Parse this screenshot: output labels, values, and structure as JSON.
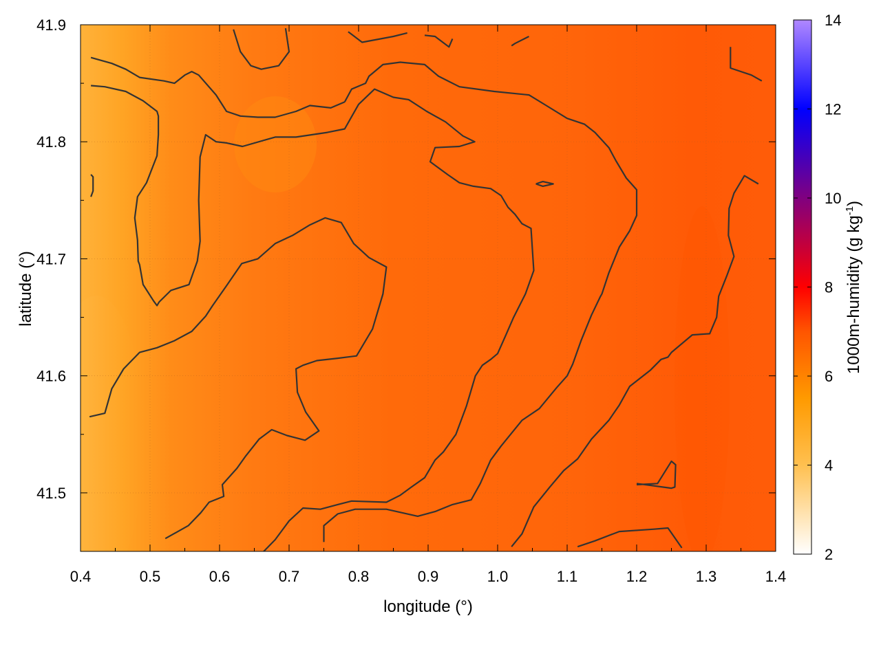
{
  "chart_data": {
    "type": "heatmap",
    "xlabel": "longitude (°)",
    "ylabel": "latitude (°)",
    "colorbar_label": "1000m-humidity (g kg-1)",
    "colorbar_label_main": "1000m-humidity (g kg",
    "colorbar_label_sup": "-1",
    "colorbar_label_close": ")",
    "xlim": [
      0.4,
      1.4
    ],
    "ylim": [
      41.45,
      41.9
    ],
    "clim": [
      2,
      14
    ],
    "x_ticks": [
      0.4,
      0.5,
      0.6,
      0.7,
      0.8,
      0.9,
      1.0,
      1.1,
      1.2,
      1.3,
      1.4
    ],
    "x_tick_labels": [
      "0.4",
      "0.5",
      "0.6",
      "0.7",
      "0.8",
      "0.9",
      "1.0",
      "1.1",
      "1.2",
      "1.3",
      "1.4"
    ],
    "y_ticks": [
      41.5,
      41.6,
      41.7,
      41.8,
      41.9
    ],
    "y_tick_labels": [
      "41.5",
      "41.6",
      "41.7",
      "41.8",
      "41.9"
    ],
    "c_ticks": [
      2,
      4,
      6,
      8,
      10,
      12,
      14
    ],
    "c_tick_labels": [
      "2",
      "4",
      "6",
      "8",
      "10",
      "12",
      "14"
    ],
    "colormap": [
      {
        "value": 2,
        "color": "#ffffff"
      },
      {
        "value": 4,
        "color": "#ffc050"
      },
      {
        "value": 5.5,
        "color": "#ff9a00"
      },
      {
        "value": 7,
        "color": "#ff5500"
      },
      {
        "value": 8,
        "color": "#ff0000"
      },
      {
        "value": 10,
        "color": "#800080"
      },
      {
        "value": 12,
        "color": "#0000ff"
      },
      {
        "value": 14,
        "color": "#b088ff"
      }
    ],
    "grid": true,
    "field_description": "humidity between roughly 5 and 7 g/kg over the map, lowest (yellow-orange) along the western edge near 0.4-0.5 lon, highest (dark orange-red) near 1.3 lon",
    "field_samples": [
      {
        "lon": 0.42,
        "lat": 41.55,
        "value": 4.6
      },
      {
        "lon": 0.45,
        "lat": 41.65,
        "value": 5.0
      },
      {
        "lon": 0.5,
        "lat": 41.75,
        "value": 5.6
      },
      {
        "lon": 0.65,
        "lat": 41.8,
        "value": 5.4
      },
      {
        "lon": 0.8,
        "lat": 41.7,
        "value": 6.1
      },
      {
        "lon": 0.9,
        "lat": 41.6,
        "value": 6.2
      },
      {
        "lon": 1.0,
        "lat": 41.8,
        "value": 6.3
      },
      {
        "lon": 1.15,
        "lat": 41.7,
        "value": 6.6
      },
      {
        "lon": 1.3,
        "lat": 41.6,
        "value": 7.0
      },
      {
        "lon": 1.35,
        "lat": 41.85,
        "value": 6.9
      }
    ],
    "contours": [
      [
        [
          0.415,
          41.872
        ],
        [
          0.445,
          41.867
        ],
        [
          0.465,
          41.862
        ],
        [
          0.485,
          41.855
        ],
        [
          0.52,
          41.852
        ],
        [
          0.535,
          41.85
        ],
        [
          0.55,
          41.857
        ],
        [
          0.56,
          41.86
        ],
        [
          0.57,
          41.857
        ],
        [
          0.595,
          41.84
        ],
        [
          0.61,
          41.826
        ],
        [
          0.63,
          41.822
        ],
        [
          0.655,
          41.821
        ],
        [
          0.68,
          41.821
        ],
        [
          0.71,
          41.826
        ],
        [
          0.73,
          41.831
        ],
        [
          0.76,
          41.829
        ],
        [
          0.78,
          41.834
        ]
      ],
      [
        [
          0.415,
          41.848
        ],
        [
          0.435,
          41.847
        ],
        [
          0.465,
          41.843
        ],
        [
          0.49,
          41.835
        ],
        [
          0.51,
          41.826
        ],
        [
          0.512,
          41.822
        ],
        [
          0.512,
          41.806
        ],
        [
          0.51,
          41.788
        ],
        [
          0.495,
          41.765
        ],
        [
          0.482,
          41.753
        ],
        [
          0.478,
          41.735
        ],
        [
          0.482,
          41.716
        ],
        [
          0.483,
          41.698
        ],
        [
          0.485,
          41.695
        ],
        [
          0.49,
          41.678
        ],
        [
          0.505,
          41.664
        ],
        [
          0.51,
          41.66
        ],
        [
          0.513,
          41.663
        ],
        [
          0.53,
          41.673
        ],
        [
          0.556,
          41.678
        ],
        [
          0.568,
          41.698
        ],
        [
          0.572,
          41.715
        ],
        [
          0.57,
          41.75
        ],
        [
          0.572,
          41.787
        ],
        [
          0.58,
          41.806
        ],
        [
          0.595,
          41.8
        ],
        [
          0.61,
          41.799
        ],
        [
          0.633,
          41.796
        ],
        [
          0.68,
          41.804
        ],
        [
          0.71,
          41.804
        ],
        [
          0.755,
          41.808
        ],
        [
          0.78,
          41.811
        ],
        [
          0.8,
          41.832
        ],
        [
          0.823,
          41.845
        ],
        [
          0.85,
          41.838
        ],
        [
          0.872,
          41.836
        ],
        [
          0.898,
          41.826
        ],
        [
          0.925,
          41.817
        ],
        [
          0.95,
          41.805
        ],
        [
          0.967,
          41.8
        ],
        [
          0.945,
          41.796
        ],
        [
          0.91,
          41.795
        ],
        [
          0.903,
          41.783
        ],
        [
          0.928,
          41.772
        ],
        [
          0.945,
          41.765
        ],
        [
          0.965,
          41.762
        ],
        [
          0.99,
          41.76
        ],
        [
          1.005,
          41.754
        ],
        [
          1.015,
          41.744
        ],
        [
          1.025,
          41.738
        ],
        [
          1.035,
          41.73
        ],
        [
          1.048,
          41.726
        ],
        [
          1.052,
          41.69
        ],
        [
          1.04,
          41.67
        ],
        [
          1.023,
          41.65
        ],
        [
          1.012,
          41.635
        ],
        [
          1.0,
          41.619
        ],
        [
          0.99,
          41.614
        ],
        [
          0.978,
          41.609
        ],
        [
          0.968,
          41.6
        ],
        [
          0.955,
          41.574
        ],
        [
          0.94,
          41.55
        ],
        [
          0.922,
          41.535
        ],
        [
          0.91,
          41.528
        ],
        [
          0.895,
          41.513
        ],
        [
          0.876,
          41.505
        ],
        [
          0.86,
          41.498
        ],
        [
          0.84,
          41.492
        ],
        [
          0.79,
          41.493
        ],
        [
          0.77,
          41.49
        ],
        [
          0.745,
          41.486
        ],
        [
          0.72,
          41.487
        ],
        [
          0.7,
          41.476
        ],
        [
          0.68,
          41.46
        ],
        [
          0.657,
          41.446
        ]
      ],
      [
        [
          0.413,
          41.565
        ],
        [
          0.435,
          41.568
        ],
        [
          0.445,
          41.589
        ],
        [
          0.462,
          41.606
        ],
        [
          0.485,
          41.62
        ],
        [
          0.51,
          41.624
        ],
        [
          0.535,
          41.63
        ],
        [
          0.56,
          41.638
        ],
        [
          0.58,
          41.651
        ],
        [
          0.59,
          41.66
        ],
        [
          0.61,
          41.677
        ],
        [
          0.632,
          41.696
        ],
        [
          0.655,
          41.7
        ],
        [
          0.68,
          41.713
        ],
        [
          0.705,
          41.72
        ],
        [
          0.73,
          41.729
        ],
        [
          0.752,
          41.735
        ],
        [
          0.775,
          41.731
        ],
        [
          0.793,
          41.713
        ],
        [
          0.815,
          41.701
        ],
        [
          0.84,
          41.693
        ],
        [
          0.835,
          41.67
        ],
        [
          0.82,
          41.64
        ],
        [
          0.797,
          41.617
        ],
        [
          0.77,
          41.615
        ],
        [
          0.74,
          41.613
        ],
        [
          0.72,
          41.609
        ],
        [
          0.71,
          41.606
        ],
        [
          0.712,
          41.586
        ],
        [
          0.724,
          41.569
        ],
        [
          0.743,
          41.553
        ],
        [
          0.723,
          41.545
        ],
        [
          0.697,
          41.549
        ],
        [
          0.675,
          41.554
        ],
        [
          0.657,
          41.546
        ],
        [
          0.637,
          41.531
        ],
        [
          0.625,
          41.521
        ],
        [
          0.604,
          41.507
        ],
        [
          0.606,
          41.497
        ],
        [
          0.585,
          41.492
        ],
        [
          0.573,
          41.483
        ],
        [
          0.555,
          41.472
        ],
        [
          0.522,
          41.461
        ]
      ],
      [
        [
          0.75,
          41.458
        ],
        [
          0.75,
          41.472
        ],
        [
          0.77,
          41.482
        ],
        [
          0.795,
          41.486
        ],
        [
          0.84,
          41.486
        ],
        [
          0.885,
          41.48
        ],
        [
          0.91,
          41.484
        ],
        [
          0.935,
          41.49
        ],
        [
          0.962,
          41.494
        ],
        [
          0.975,
          41.508
        ],
        [
          0.99,
          41.528
        ],
        [
          1.005,
          41.54
        ],
        [
          1.035,
          41.562
        ],
        [
          1.06,
          41.572
        ],
        [
          1.085,
          41.59
        ],
        [
          1.1,
          41.6
        ],
        [
          1.108,
          41.61
        ],
        [
          1.12,
          41.63
        ],
        [
          1.135,
          41.652
        ],
        [
          1.148,
          41.668
        ],
        [
          1.15,
          41.67
        ],
        [
          1.16,
          41.688
        ],
        [
          1.175,
          41.71
        ],
        [
          1.19,
          41.724
        ],
        [
          1.2,
          41.737
        ],
        [
          1.2,
          41.759
        ],
        [
          1.185,
          41.769
        ],
        [
          1.17,
          41.784
        ],
        [
          1.16,
          41.795
        ],
        [
          1.14,
          41.808
        ],
        [
          1.125,
          41.815
        ],
        [
          1.1,
          41.82
        ],
        [
          1.07,
          41.831
        ],
        [
          1.045,
          41.84
        ],
        [
          0.995,
          41.843
        ],
        [
          0.945,
          41.847
        ],
        [
          0.915,
          41.856
        ],
        [
          0.895,
          41.866
        ],
        [
          0.86,
          41.868
        ],
        [
          0.835,
          41.866
        ],
        [
          0.815,
          41.856
        ],
        [
          0.81,
          41.85
        ],
        [
          0.79,
          41.845
        ],
        [
          0.78,
          41.834
        ]
      ],
      [
        [
          1.02,
          41.454
        ],
        [
          1.035,
          41.465
        ],
        [
          1.052,
          41.488
        ],
        [
          1.075,
          41.505
        ],
        [
          1.095,
          41.519
        ],
        [
          1.115,
          41.529
        ],
        [
          1.135,
          41.546
        ],
        [
          1.16,
          41.562
        ],
        [
          1.175,
          41.575
        ],
        [
          1.19,
          41.591
        ],
        [
          1.22,
          41.605
        ],
        [
          1.235,
          41.614
        ],
        [
          1.245,
          41.616
        ],
        [
          1.25,
          41.62
        ],
        [
          1.28,
          41.635
        ],
        [
          1.305,
          41.636
        ],
        [
          1.315,
          41.65
        ],
        [
          1.318,
          41.668
        ],
        [
          1.33,
          41.686
        ],
        [
          1.34,
          41.702
        ],
        [
          1.332,
          41.72
        ],
        [
          1.333,
          41.743
        ],
        [
          1.34,
          41.756
        ],
        [
          1.355,
          41.771
        ],
        [
          1.375,
          41.764
        ]
      ],
      [
        [
          1.115,
          41.454
        ],
        [
          1.14,
          41.459
        ],
        [
          1.175,
          41.467
        ],
        [
          1.225,
          41.469
        ],
        [
          1.245,
          41.47
        ],
        [
          1.265,
          41.453
        ]
      ],
      [
        [
          1.2,
          41.507
        ],
        [
          1.23,
          41.508
        ],
        [
          1.25,
          41.527
        ],
        [
          1.256,
          41.524
        ],
        [
          1.255,
          41.505
        ],
        [
          1.25,
          41.504
        ],
        [
          1.2,
          41.508
        ]
      ],
      [
        [
          1.055,
          41.764
        ],
        [
          1.065,
          41.766
        ],
        [
          1.08,
          41.764
        ],
        [
          1.065,
          41.762
        ],
        [
          1.055,
          41.764
        ]
      ],
      [
        [
          0.62,
          41.896
        ],
        [
          0.63,
          41.877
        ],
        [
          0.645,
          41.865
        ],
        [
          0.66,
          41.862
        ],
        [
          0.685,
          41.865
        ],
        [
          0.7,
          41.877
        ],
        [
          0.695,
          41.897
        ]
      ],
      [
        [
          0.785,
          41.894
        ],
        [
          0.805,
          41.885
        ],
        [
          0.85,
          41.89
        ],
        [
          0.87,
          41.893
        ]
      ],
      [
        [
          0.895,
          41.891
        ],
        [
          0.91,
          41.89
        ],
        [
          0.93,
          41.881
        ],
        [
          0.935,
          41.888
        ]
      ],
      [
        [
          1.02,
          41.882
        ],
        [
          1.025,
          41.884
        ],
        [
          1.045,
          41.89
        ]
      ],
      [
        [
          0.415,
          41.753
        ],
        [
          0.418,
          41.758
        ],
        [
          0.418,
          41.77
        ],
        [
          0.415,
          41.772
        ]
      ],
      [
        [
          1.335,
          41.881
        ],
        [
          1.335,
          41.863
        ],
        [
          1.365,
          41.857
        ],
        [
          1.38,
          41.852
        ]
      ]
    ]
  }
}
